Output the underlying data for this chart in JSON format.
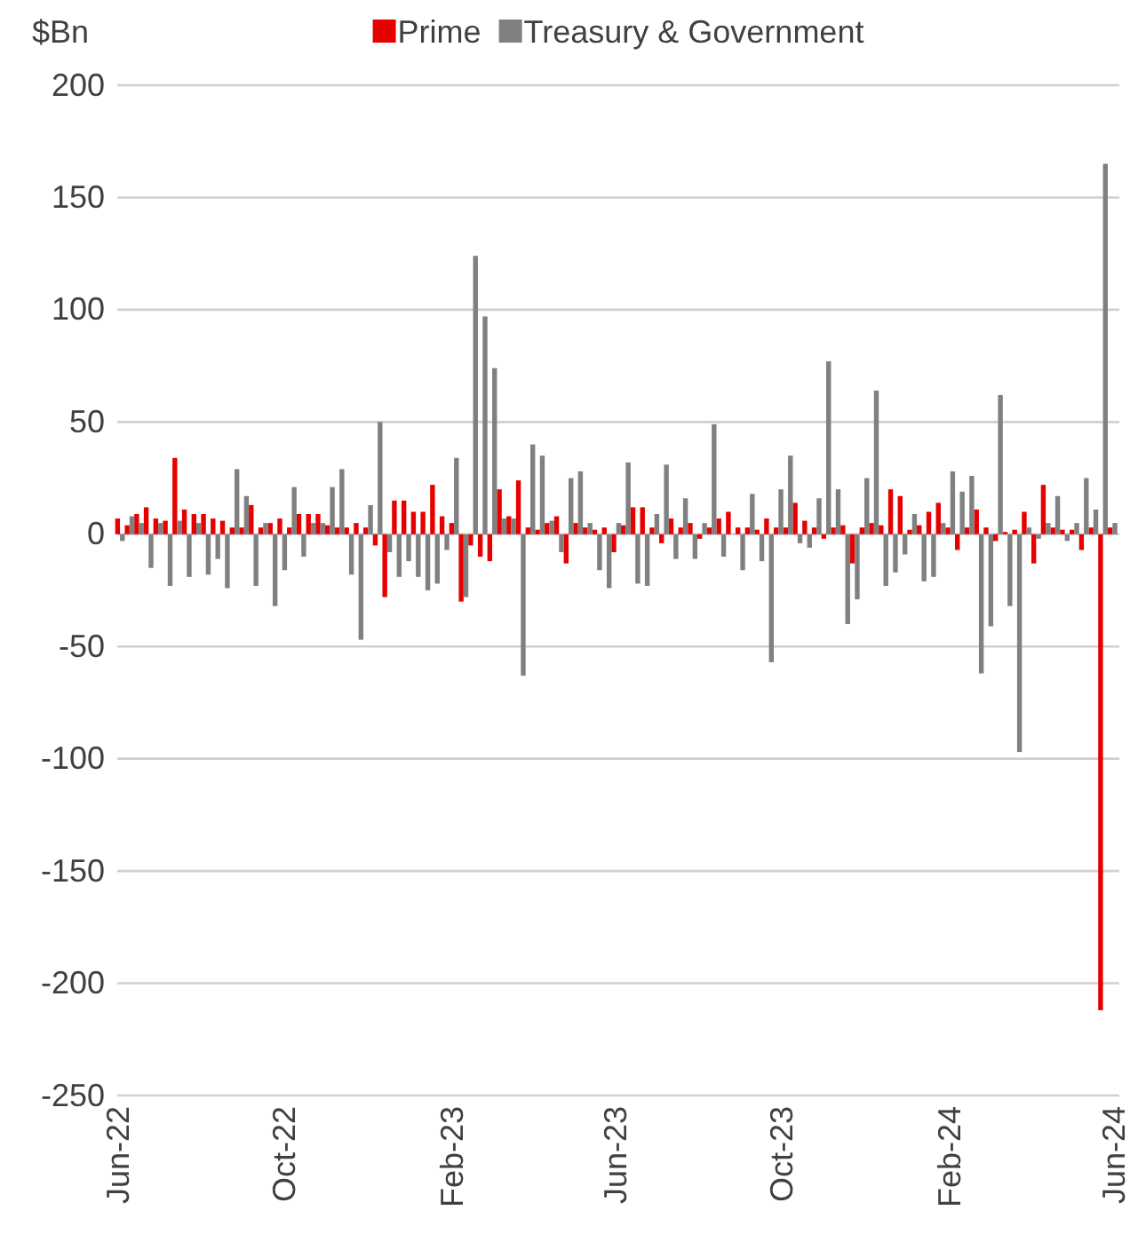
{
  "chart_data": {
    "type": "bar",
    "ylabel": "$Bn",
    "legend": "top",
    "grid": "y",
    "x": [
      "2022-06-03",
      "2022-06-10",
      "2022-06-17",
      "2022-06-24",
      "2022-07-01",
      "2022-07-08",
      "2022-07-15",
      "2022-07-22",
      "2022-07-29",
      "2022-08-05",
      "2022-08-12",
      "2022-08-19",
      "2022-08-26",
      "2022-09-02",
      "2022-09-09",
      "2022-09-16",
      "2022-09-23",
      "2022-09-30",
      "2022-10-07",
      "2022-10-14",
      "2022-10-21",
      "2022-10-28",
      "2022-11-04",
      "2022-11-11",
      "2022-11-18",
      "2022-11-25",
      "2022-12-02",
      "2022-12-09",
      "2022-12-16",
      "2022-12-23",
      "2022-12-30",
      "2023-01-06",
      "2023-01-13",
      "2023-01-20",
      "2023-01-27",
      "2023-02-03",
      "2023-02-10",
      "2023-02-17",
      "2023-02-24",
      "2023-03-03",
      "2023-03-10",
      "2023-03-17",
      "2023-03-24",
      "2023-03-31",
      "2023-04-07",
      "2023-04-14",
      "2023-04-21",
      "2023-04-28",
      "2023-05-05",
      "2023-05-12",
      "2023-05-19",
      "2023-05-26",
      "2023-06-02",
      "2023-06-09",
      "2023-06-16",
      "2023-06-23",
      "2023-06-30",
      "2023-07-07",
      "2023-07-14",
      "2023-07-21",
      "2023-07-28",
      "2023-08-04",
      "2023-08-11",
      "2023-08-18",
      "2023-08-25",
      "2023-09-01",
      "2023-09-08",
      "2023-09-15",
      "2023-09-22",
      "2023-09-29",
      "2023-10-06",
      "2023-10-13",
      "2023-10-20",
      "2023-10-27",
      "2023-11-03",
      "2023-11-10",
      "2023-11-17",
      "2023-11-24",
      "2023-12-01",
      "2023-12-08",
      "2023-12-15",
      "2023-12-22",
      "2023-12-29",
      "2024-01-05",
      "2024-01-12",
      "2024-01-19",
      "2024-01-26",
      "2024-02-02",
      "2024-02-09",
      "2024-02-16",
      "2024-02-23",
      "2024-03-01",
      "2024-03-08",
      "2024-03-15",
      "2024-03-22",
      "2024-03-29",
      "2024-04-05",
      "2024-04-12",
      "2024-04-19",
      "2024-04-26",
      "2024-05-03",
      "2024-05-10",
      "2024-05-17",
      "2024-05-24",
      "2024-05-31"
    ],
    "series": [
      {
        "name": "Prime",
        "color": "#e60000",
        "values": [
          7,
          4,
          9,
          12,
          7,
          6,
          34,
          11,
          9,
          9,
          7,
          6,
          3,
          3,
          13,
          3,
          5,
          7,
          3,
          9,
          9,
          9,
          4,
          3,
          3,
          5,
          3,
          -5,
          -28,
          15,
          15,
          10,
          10,
          22,
          8,
          5,
          -30,
          -5,
          -10,
          -12,
          20,
          8,
          24,
          3,
          2,
          5,
          8,
          -13,
          5,
          3,
          2,
          3,
          -8,
          4,
          12,
          12,
          3,
          -4,
          7,
          3,
          5,
          -2,
          3,
          7,
          10,
          3,
          3,
          2,
          7,
          3,
          3,
          14,
          6,
          3,
          -2,
          3,
          4,
          -13,
          3,
          5,
          4,
          20,
          17,
          2,
          4,
          10,
          14,
          3,
          -7,
          3,
          11,
          3,
          -3,
          1,
          2,
          10,
          -13,
          22,
          3,
          2,
          2,
          -7,
          3,
          -212,
          3
        ]
      },
      {
        "name": "Treasury & Government",
        "color": "#808080",
        "values": [
          -3,
          8,
          5,
          -15,
          5,
          -23,
          6,
          -19,
          5,
          -18,
          -11,
          -24,
          29,
          17,
          -23,
          5,
          -32,
          -16,
          21,
          -10,
          5,
          5,
          21,
          29,
          -18,
          -47,
          13,
          50,
          -8,
          -19,
          -12,
          -19,
          -25,
          -22,
          -7,
          34,
          -28,
          124,
          97,
          74,
          7,
          7,
          -63,
          40,
          35,
          6,
          -8,
          25,
          28,
          5,
          -16,
          -24,
          5,
          32,
          -22,
          -23,
          9,
          31,
          -11,
          16,
          -11,
          5,
          49,
          -10,
          0,
          -16,
          18,
          -12,
          -57,
          20,
          35,
          -4,
          -6,
          16,
          77,
          20,
          -40,
          -29,
          25,
          64,
          -23,
          -17,
          -9,
          9,
          -21,
          -19,
          5,
          28,
          19,
          26,
          -62,
          -41,
          62,
          -32,
          -97,
          3,
          -2,
          5,
          17,
          -3,
          5,
          25,
          11,
          165,
          5
        ]
      }
    ],
    "xlim": [
      "2022-06-01",
      "2024-06-05"
    ],
    "xticks": [
      {
        "value": "2022-06-01",
        "label": "Jun-22"
      },
      {
        "value": "2022-10-01",
        "label": "Oct-22"
      },
      {
        "value": "2023-02-01",
        "label": "Feb-23"
      },
      {
        "value": "2023-06-01",
        "label": "Jun-23"
      },
      {
        "value": "2023-10-01",
        "label": "Oct-23"
      },
      {
        "value": "2024-02-01",
        "label": "Feb-24"
      },
      {
        "value": "2024-06-01",
        "label": "Jun-24"
      }
    ],
    "ylim": [
      -250,
      200
    ],
    "yticks": [
      -250,
      -200,
      -150,
      -100,
      -50,
      0,
      50,
      100,
      150,
      200
    ]
  }
}
